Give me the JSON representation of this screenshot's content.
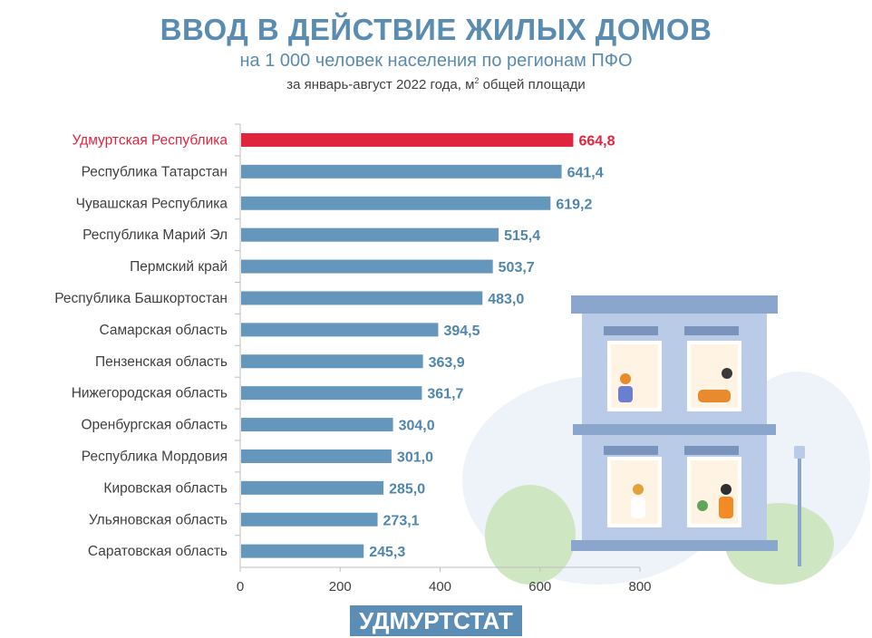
{
  "header": {
    "title": "ВВОД В ДЕЙСТВИЕ ЖИЛЫХ ДОМОВ",
    "subtitle": "на 1 000 человек населения по регионам ПФО",
    "subtitle2_prefix": "за январь-август 2022 года, м",
    "subtitle2_sup": "2",
    "subtitle2_suffix": " общей площади"
  },
  "brand": {
    "label": "УДМУРТСТАТ"
  },
  "colors": {
    "bar": "#6596bc",
    "highlight": "#e0243e",
    "label": "#4f86ad",
    "axis": "#404040"
  },
  "chart_data": {
    "type": "bar",
    "orientation": "horizontal",
    "categories": [
      "Удмуртская Республика",
      "Республика Татарстан",
      "Чувашская Республика",
      "Республика  Марий Эл",
      "Пермский край",
      "Республика Башкортостан",
      "Самарская область",
      "Пензенская область",
      "Нижегородская область",
      "Оренбургская область",
      "Республика Мордовия",
      "Кировская область",
      "Ульяновская область",
      "Саратовская область"
    ],
    "values": [
      664.8,
      641.4,
      619.2,
      515.4,
      503.7,
      483.0,
      394.5,
      363.9,
      361.7,
      304.0,
      301.0,
      285.0,
      273.1,
      245.3
    ],
    "value_labels": [
      "664,8",
      "641,4",
      "619,2",
      "515,4",
      "503,7",
      "483,0",
      "394,5",
      "363,9",
      "361,7",
      "304,0",
      "301,0",
      "285,0",
      "273,1",
      "245,3"
    ],
    "highlight_index": 0,
    "xlim": [
      0,
      800
    ],
    "xticks": [
      "0",
      "200",
      "400",
      "600",
      "800"
    ],
    "grid": false
  }
}
